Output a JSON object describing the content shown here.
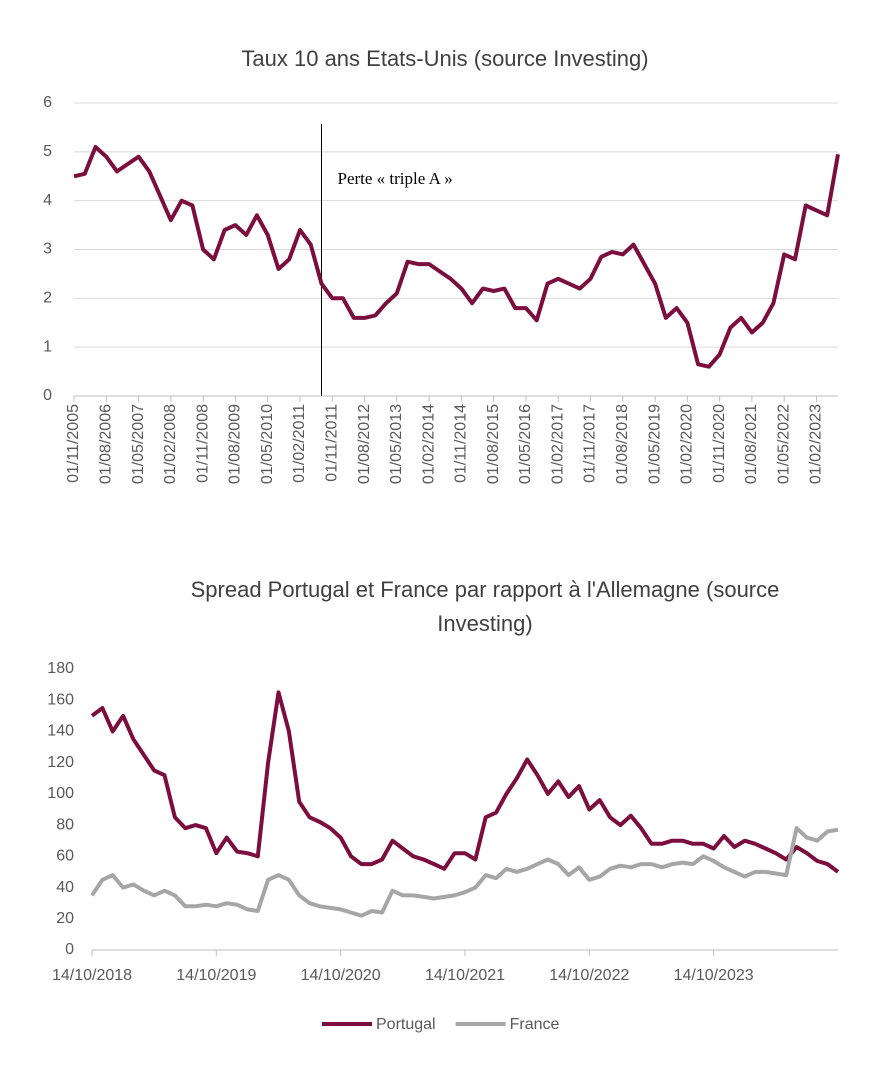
{
  "chart_data": [
    {
      "type": "line",
      "title": "Taux 10 ans Etats-Unis (source Investing)",
      "color": "#7b0d3f",
      "grid": true,
      "x": [
        "01/11/2005",
        "01/02/2006",
        "01/05/2006",
        "01/08/2006",
        "01/11/2006",
        "01/02/2007",
        "01/05/2007",
        "01/08/2007",
        "01/11/2007",
        "01/02/2008",
        "01/05/2008",
        "01/08/2008",
        "01/11/2008",
        "01/02/2009",
        "01/05/2009",
        "01/08/2009",
        "01/11/2009",
        "01/02/2010",
        "01/05/2010",
        "01/08/2010",
        "01/11/2010",
        "01/02/2011",
        "01/05/2011",
        "01/08/2011",
        "01/11/2011",
        "01/02/2012",
        "01/05/2012",
        "01/08/2012",
        "01/11/2012",
        "01/02/2013",
        "01/05/2013",
        "01/08/2013",
        "01/11/2013",
        "01/02/2014",
        "01/05/2014",
        "01/08/2014",
        "01/11/2014",
        "01/02/2015",
        "01/05/2015",
        "01/08/2015",
        "01/11/2015",
        "01/02/2016",
        "01/05/2016",
        "01/08/2016",
        "01/11/2016",
        "01/02/2017",
        "01/05/2017",
        "01/08/2017",
        "01/11/2017",
        "01/02/2018",
        "01/05/2018",
        "01/08/2018",
        "01/11/2018",
        "01/02/2019",
        "01/05/2019",
        "01/08/2019",
        "01/11/2019",
        "01/02/2020",
        "01/05/2020",
        "01/08/2020",
        "01/11/2020",
        "01/02/2021",
        "01/05/2021",
        "01/08/2021",
        "01/11/2021",
        "01/02/2022",
        "01/05/2022",
        "01/08/2022",
        "01/11/2022",
        "01/02/2023",
        "01/05/2023",
        "01/08/2023"
      ],
      "values": [
        4.5,
        4.55,
        5.1,
        4.9,
        4.6,
        4.75,
        4.9,
        4.6,
        4.1,
        3.6,
        4.0,
        3.9,
        3.0,
        2.8,
        3.4,
        3.5,
        3.3,
        3.7,
        3.3,
        2.6,
        2.8,
        3.4,
        3.1,
        2.3,
        2.0,
        2.0,
        1.6,
        1.6,
        1.65,
        1.9,
        2.1,
        2.75,
        2.7,
        2.7,
        2.55,
        2.4,
        2.2,
        1.9,
        2.2,
        2.15,
        2.2,
        1.8,
        1.8,
        1.55,
        2.3,
        2.4,
        2.3,
        2.2,
        2.4,
        2.85,
        2.95,
        2.9,
        3.1,
        2.7,
        2.3,
        1.6,
        1.8,
        1.5,
        0.65,
        0.6,
        0.85,
        1.4,
        1.6,
        1.3,
        1.5,
        1.9,
        2.9,
        2.8,
        3.9,
        3.8,
        3.7,
        4.95
      ],
      "xticks": [
        "01/11/2005",
        "01/08/2006",
        "01/05/2007",
        "01/02/2008",
        "01/11/2008",
        "01/08/2009",
        "01/05/2010",
        "01/02/2011",
        "01/11/2011",
        "01/08/2012",
        "01/05/2013",
        "01/02/2014",
        "01/11/2014",
        "01/08/2015",
        "01/05/2016",
        "01/02/2017",
        "01/11/2017",
        "01/08/2018",
        "01/05/2019",
        "01/02/2020",
        "01/11/2020",
        "01/08/2021",
        "01/05/2022",
        "01/02/2023"
      ],
      "ylim": [
        0,
        6
      ],
      "yticks": [
        0,
        1,
        2,
        3,
        4,
        5,
        6
      ],
      "annotations": [
        {
          "text": "Perte « triple A »",
          "x": "01/08/2011"
        }
      ]
    },
    {
      "type": "line",
      "title": "Spread Portugal et France par rapport à l'Allemagne (source Investing)",
      "grid": false,
      "legend": "bottom",
      "x": [
        "14/10/2018",
        "14/11/2018",
        "14/12/2018",
        "14/01/2019",
        "14/02/2019",
        "14/03/2019",
        "14/04/2019",
        "14/05/2019",
        "14/06/2019",
        "14/07/2019",
        "14/08/2019",
        "14/09/2019",
        "14/10/2019",
        "14/11/2019",
        "14/12/2019",
        "14/01/2020",
        "14/02/2020",
        "14/03/2020",
        "14/04/2020",
        "14/05/2020",
        "14/06/2020",
        "14/07/2020",
        "14/08/2020",
        "14/09/2020",
        "14/10/2020",
        "14/11/2020",
        "14/12/2020",
        "14/01/2021",
        "14/02/2021",
        "14/03/2021",
        "14/04/2021",
        "14/05/2021",
        "14/06/2021",
        "14/07/2021",
        "14/08/2021",
        "14/09/2021",
        "14/10/2021",
        "14/11/2021",
        "14/12/2021",
        "14/01/2022",
        "14/02/2022",
        "14/03/2022",
        "14/04/2022",
        "14/05/2022",
        "14/06/2022",
        "14/07/2022",
        "14/08/2022",
        "14/09/2022",
        "14/10/2022",
        "14/11/2022",
        "14/12/2022",
        "14/01/2023",
        "14/02/2023",
        "14/03/2023",
        "14/04/2023",
        "14/05/2023",
        "14/06/2023",
        "14/07/2023",
        "14/08/2023",
        "14/09/2023",
        "14/10/2023",
        "14/11/2023",
        "14/12/2023",
        "14/01/2024",
        "14/02/2024",
        "14/03/2024",
        "14/04/2024",
        "14/05/2024",
        "14/06/2024",
        "14/07/2024",
        "14/08/2024",
        "14/09/2024",
        "14/10/2024"
      ],
      "series": [
        {
          "name": "Portugal",
          "color": "#7b0d3f",
          "values": [
            150,
            155,
            140,
            150,
            135,
            125,
            115,
            112,
            85,
            78,
            80,
            78,
            62,
            72,
            63,
            62,
            60,
            120,
            165,
            140,
            95,
            85,
            82,
            78,
            72,
            60,
            55,
            55,
            58,
            70,
            65,
            60,
            58,
            55,
            52,
            62,
            62,
            58,
            85,
            88,
            100,
            110,
            122,
            112,
            100,
            108,
            98,
            105,
            90,
            96,
            85,
            80,
            86,
            78,
            68,
            68,
            70,
            70,
            68,
            68,
            65,
            73,
            66,
            70,
            68,
            65,
            62,
            58,
            66,
            62,
            57,
            55,
            50
          ]
        },
        {
          "name": "France",
          "color": "#a6a6a6",
          "values": [
            35,
            45,
            48,
            40,
            42,
            38,
            35,
            38,
            35,
            28,
            28,
            29,
            28,
            30,
            29,
            26,
            25,
            45,
            48,
            45,
            35,
            30,
            28,
            27,
            26,
            24,
            22,
            25,
            24,
            38,
            35,
            35,
            34,
            33,
            34,
            35,
            37,
            40,
            48,
            46,
            52,
            50,
            52,
            55,
            58,
            55,
            48,
            53,
            45,
            47,
            52,
            54,
            53,
            55,
            55,
            53,
            55,
            56,
            55,
            60,
            57,
            53,
            50,
            47,
            50,
            50,
            49,
            48,
            78,
            72,
            70,
            76,
            77
          ]
        }
      ],
      "xticks": [
        "14/10/2018",
        "14/10/2019",
        "14/10/2020",
        "14/10/2021",
        "14/10/2022",
        "14/10/2023"
      ],
      "ylim": [
        0,
        180
      ],
      "yticks": [
        0,
        20,
        40,
        60,
        80,
        100,
        120,
        140,
        160,
        180
      ]
    }
  ]
}
